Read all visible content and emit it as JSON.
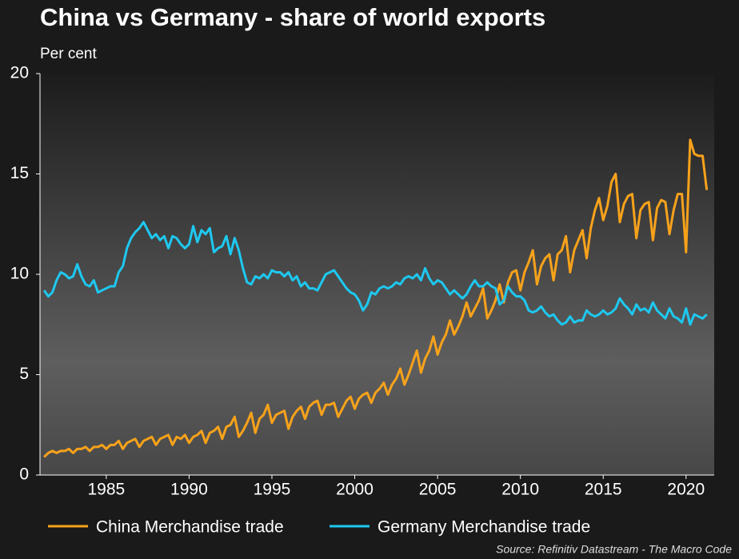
{
  "chart_data": {
    "type": "line",
    "title": "China vs Germany - share of world exports",
    "y_label": "Per cent",
    "source": "Source: Refinitiv Datastream - The Macro Code",
    "xlim": [
      1981,
      2021.7
    ],
    "xticks": [
      1985,
      1990,
      1995,
      2000,
      2005,
      2010,
      2015,
      2020
    ],
    "ylim": [
      0,
      20
    ],
    "yticks": [
      0,
      5,
      10,
      15,
      20
    ],
    "legend": "bottom",
    "x": [
      1981.25,
      1981.5,
      1981.75,
      1982,
      1982.25,
      1982.5,
      1982.75,
      1983,
      1983.25,
      1983.5,
      1983.75,
      1984,
      1984.25,
      1984.5,
      1984.75,
      1985,
      1985.25,
      1985.5,
      1985.75,
      1986,
      1986.25,
      1986.5,
      1986.75,
      1987,
      1987.25,
      1987.5,
      1987.75,
      1988,
      1988.25,
      1988.5,
      1988.75,
      1989,
      1989.25,
      1989.5,
      1989.75,
      1990,
      1990.25,
      1990.5,
      1990.75,
      1991,
      1991.25,
      1991.5,
      1991.75,
      1992,
      1992.25,
      1992.5,
      1992.75,
      1993,
      1993.25,
      1993.5,
      1993.75,
      1994,
      1994.25,
      1994.5,
      1994.75,
      1995,
      1995.25,
      1995.5,
      1995.75,
      1996,
      1996.25,
      1996.5,
      1996.75,
      1997,
      1997.25,
      1997.5,
      1997.75,
      1998,
      1998.25,
      1998.5,
      1998.75,
      1999,
      1999.25,
      1999.5,
      1999.75,
      2000,
      2000.25,
      2000.5,
      2000.75,
      2001,
      2001.25,
      2001.5,
      2001.75,
      2002,
      2002.25,
      2002.5,
      2002.75,
      2003,
      2003.25,
      2003.5,
      2003.75,
      2004,
      2004.25,
      2004.5,
      2004.75,
      2005,
      2005.25,
      2005.5,
      2005.75,
      2006,
      2006.25,
      2006.5,
      2006.75,
      2007,
      2007.25,
      2007.5,
      2007.75,
      2008,
      2008.25,
      2008.5,
      2008.75,
      2009,
      2009.25,
      2009.5,
      2009.75,
      2010,
      2010.25,
      2010.5,
      2010.75,
      2011,
      2011.25,
      2011.5,
      2011.75,
      2012,
      2012.25,
      2012.5,
      2012.75,
      2013,
      2013.25,
      2013.5,
      2013.75,
      2014,
      2014.25,
      2014.5,
      2014.75,
      2015,
      2015.25,
      2015.5,
      2015.75,
      2016,
      2016.25,
      2016.5,
      2016.75,
      2017,
      2017.25,
      2017.5,
      2017.75,
      2018,
      2018.25,
      2018.5,
      2018.75,
      2019,
      2019.25,
      2019.5,
      2019.75,
      2020,
      2020.25,
      2020.5,
      2020.75,
      2021,
      2021.25
    ],
    "series": [
      {
        "name": "China Merchandise trade",
        "color": "#f7a21b",
        "values": [
          0.9,
          1.1,
          1.2,
          1.1,
          1.2,
          1.2,
          1.3,
          1.1,
          1.3,
          1.3,
          1.4,
          1.2,
          1.4,
          1.4,
          1.5,
          1.3,
          1.5,
          1.5,
          1.7,
          1.3,
          1.6,
          1.7,
          1.8,
          1.4,
          1.7,
          1.8,
          1.9,
          1.5,
          1.8,
          1.9,
          2.0,
          1.5,
          1.9,
          1.8,
          2.0,
          1.6,
          1.9,
          2.0,
          2.2,
          1.6,
          2.1,
          2.2,
          2.4,
          1.8,
          2.4,
          2.5,
          2.9,
          1.9,
          2.2,
          2.6,
          3.1,
          2.1,
          2.8,
          3.0,
          3.5,
          2.6,
          3.0,
          3.1,
          3.2,
          2.3,
          2.9,
          3.2,
          3.4,
          2.8,
          3.4,
          3.6,
          3.7,
          3.0,
          3.5,
          3.5,
          3.6,
          2.9,
          3.3,
          3.7,
          3.9,
          3.3,
          3.8,
          4.0,
          4.1,
          3.6,
          4.1,
          4.3,
          4.6,
          4.0,
          4.5,
          4.8,
          5.3,
          4.5,
          5.0,
          5.6,
          6.2,
          5.1,
          5.8,
          6.2,
          6.9,
          6.0,
          6.6,
          7.0,
          7.7,
          7.0,
          7.4,
          7.9,
          8.6,
          7.9,
          8.3,
          8.7,
          9.3,
          7.8,
          8.2,
          8.7,
          9.5,
          8.6,
          9.6,
          10.1,
          10.2,
          9.2,
          10.1,
          10.6,
          11.2,
          9.5,
          10.4,
          10.8,
          11.0,
          9.7,
          11.0,
          11.2,
          11.9,
          10.1,
          11.2,
          11.7,
          12.2,
          10.8,
          12.3,
          13.2,
          13.8,
          12.7,
          13.4,
          14.6,
          15.0,
          12.6,
          13.5,
          13.9,
          14.0,
          11.8,
          13.2,
          13.5,
          13.6,
          11.7,
          13.3,
          13.7,
          13.6,
          12.0,
          13.2,
          14.0,
          14.0,
          11.1,
          16.7,
          16.0,
          15.9,
          15.9,
          14.2
        ]
      },
      {
        "name": "Germany Merchandise trade",
        "color": "#1ec8f0",
        "values": [
          9.2,
          8.9,
          9.1,
          9.7,
          10.1,
          10.0,
          9.8,
          9.9,
          10.5,
          9.9,
          9.5,
          9.4,
          9.7,
          9.1,
          9.2,
          9.3,
          9.4,
          9.4,
          10.1,
          10.4,
          11.3,
          11.8,
          12.1,
          12.3,
          12.6,
          12.2,
          11.8,
          12.0,
          11.7,
          11.9,
          11.3,
          11.9,
          11.8,
          11.5,
          11.3,
          11.5,
          12.4,
          11.6,
          12.2,
          12.0,
          12.3,
          11.1,
          11.3,
          11.4,
          11.9,
          11.0,
          11.8,
          11.2,
          10.3,
          9.6,
          9.5,
          9.9,
          9.8,
          10.0,
          9.8,
          10.2,
          10.1,
          10.1,
          9.9,
          10.1,
          9.7,
          9.9,
          9.4,
          9.6,
          9.3,
          9.3,
          9.2,
          9.6,
          10.0,
          10.1,
          10.2,
          9.9,
          9.6,
          9.3,
          9.1,
          9.0,
          8.7,
          8.2,
          8.5,
          9.1,
          9.0,
          9.3,
          9.4,
          9.3,
          9.4,
          9.6,
          9.5,
          9.8,
          9.9,
          9.8,
          10.0,
          9.7,
          10.3,
          9.8,
          9.5,
          9.7,
          9.6,
          9.3,
          9.0,
          9.2,
          9.0,
          8.8,
          9.0,
          9.4,
          9.7,
          9.4,
          9.4,
          9.6,
          9.4,
          9.3,
          8.5,
          8.7,
          9.4,
          9.1,
          8.9,
          8.9,
          8.7,
          8.2,
          8.1,
          8.2,
          8.4,
          8.1,
          7.9,
          8.0,
          7.7,
          7.5,
          7.6,
          7.9,
          7.6,
          7.7,
          7.7,
          8.2,
          8.0,
          7.9,
          8.0,
          8.2,
          8.0,
          8.1,
          8.3,
          8.8,
          8.5,
          8.3,
          8.0,
          8.5,
          8.2,
          8.3,
          8.1,
          8.6,
          8.2,
          8.0,
          7.8,
          8.3,
          7.9,
          7.8,
          7.6,
          8.3,
          7.5,
          8.0,
          7.9,
          7.8,
          8.0
        ]
      }
    ]
  }
}
